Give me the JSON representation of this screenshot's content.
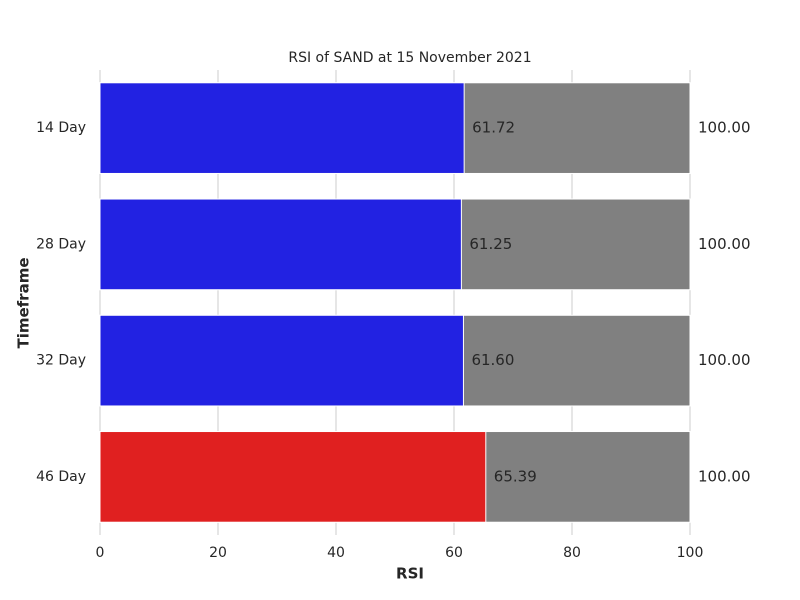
{
  "chart_data": {
    "type": "bar",
    "orientation": "horizontal",
    "title": "RSI of SAND at 15 November 2021",
    "x_label": "RSI",
    "y_label": "Timeframe",
    "categories": [
      "14 Day",
      "28 Day",
      "32 Day",
      "46 Day"
    ],
    "series": [
      {
        "color": "#808080",
        "values": [
          100,
          100,
          100,
          100
        ],
        "value_labels": [
          "100.00",
          "100.00",
          "100.00",
          "100.00"
        ]
      },
      {
        "colors": [
          "#2222e2",
          "#2222e2",
          "#2222e2",
          "#e02020"
        ],
        "values": [
          61.72,
          61.25,
          61.6,
          65.39
        ],
        "value_labels": [
          "61.72",
          "61.25",
          "61.60",
          "65.39"
        ]
      }
    ],
    "xlim": [
      0,
      100
    ],
    "xticks": [
      0,
      20,
      40,
      60,
      80,
      100
    ],
    "grid": true
  }
}
